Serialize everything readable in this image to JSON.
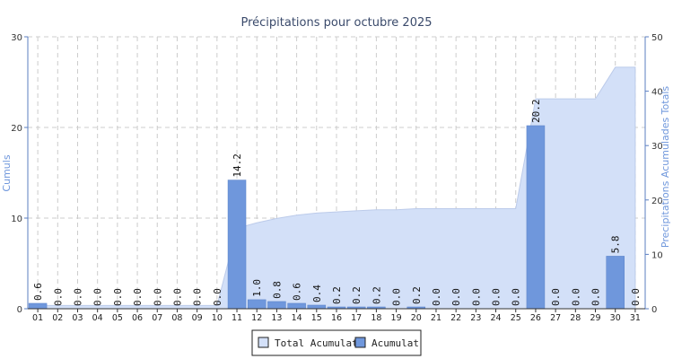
{
  "chart_data": {
    "type": "bar",
    "title": "Précipitations pour octubre 2025",
    "ylabel_left": "Cumuls",
    "ylabel_right": "Precipitations Acumulades Totals",
    "ylim_left": [
      0,
      30
    ],
    "ylim_right": [
      0,
      50
    ],
    "yticks_left": [
      "0",
      "10",
      "20",
      "30"
    ],
    "yticks_right": [
      "0",
      "10",
      "20",
      "30",
      "40",
      "50"
    ],
    "grid": true,
    "legend_placement": "bottom-center",
    "categories": [
      "01",
      "02",
      "03",
      "04",
      "05",
      "06",
      "07",
      "08",
      "09",
      "10",
      "11",
      "12",
      "13",
      "14",
      "15",
      "16",
      "17",
      "18",
      "19",
      "20",
      "21",
      "22",
      "23",
      "24",
      "25",
      "26",
      "27",
      "28",
      "29",
      "30",
      "31"
    ],
    "series": [
      {
        "name": "Acumulat",
        "type": "bar",
        "axis": "left",
        "color": "#6f97dc",
        "values": [
          0.6,
          0.0,
          0.0,
          0.0,
          0.0,
          0.0,
          0.0,
          0.0,
          0.0,
          0.0,
          14.2,
          1.0,
          0.8,
          0.6,
          0.4,
          0.2,
          0.2,
          0.2,
          0.0,
          0.2,
          0.0,
          0.0,
          0.0,
          0.0,
          0.0,
          20.2,
          0.0,
          0.0,
          0.0,
          5.8,
          0.0
        ],
        "labels": [
          "0.6",
          "0.0",
          "0.0",
          "0.0",
          "0.0",
          "0.0",
          "0.0",
          "0.0",
          "0.0",
          "0.0",
          "14.2",
          "1.0",
          "0.8",
          "0.6",
          "0.4",
          "0.2",
          "0.2",
          "0.2",
          "0.0",
          "0.2",
          "0.0",
          "0.0",
          "0.0",
          "0.0",
          "0.0",
          "20.2",
          "0.0",
          "0.0",
          "0.0",
          "5.8",
          "0.0"
        ]
      },
      {
        "name": "Total Acumulat",
        "type": "area",
        "axis": "right",
        "color": "#d3e0f8",
        "values": [
          0.6,
          0.6,
          0.6,
          0.6,
          0.6,
          0.6,
          0.6,
          0.6,
          0.6,
          0.6,
          14.8,
          15.8,
          16.6,
          17.2,
          17.6,
          17.8,
          18.0,
          18.2,
          18.2,
          18.4,
          18.4,
          18.4,
          18.4,
          18.4,
          18.4,
          38.6,
          38.6,
          38.6,
          38.6,
          44.4,
          44.4
        ]
      }
    ]
  }
}
